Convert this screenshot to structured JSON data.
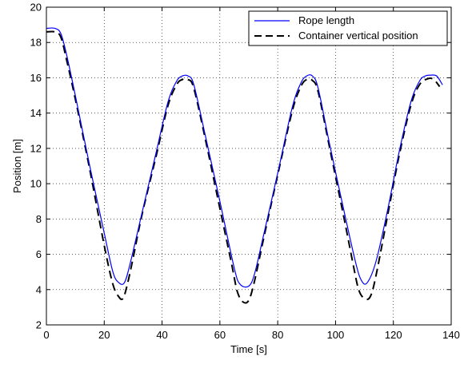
{
  "chart_data": {
    "type": "line",
    "title": "",
    "xlabel": "Time [s]",
    "ylabel": "Position [m]",
    "xlim": [
      0,
      140
    ],
    "ylim": [
      2,
      20
    ],
    "xticks": [
      0,
      20,
      40,
      60,
      80,
      100,
      120,
      140
    ],
    "yticks": [
      2,
      4,
      6,
      8,
      10,
      12,
      14,
      16,
      18,
      20
    ],
    "grid": true,
    "legend_position": "top-right",
    "series": [
      {
        "name": "Rope length",
        "style": "solid",
        "color": "#0000ff",
        "points": [
          [
            0,
            18.8
          ],
          [
            3,
            18.8
          ],
          [
            5,
            18.5
          ],
          [
            7,
            17.3
          ],
          [
            10,
            15.0
          ],
          [
            15,
            11.0
          ],
          [
            20,
            7.2
          ],
          [
            23,
            5.0
          ],
          [
            25,
            4.4
          ],
          [
            27,
            4.4
          ],
          [
            29,
            5.5
          ],
          [
            33,
            8.3
          ],
          [
            38,
            11.8
          ],
          [
            42,
            14.6
          ],
          [
            45,
            15.8
          ],
          [
            47,
            16.1
          ],
          [
            49,
            16.1
          ],
          [
            51,
            15.6
          ],
          [
            55,
            12.7
          ],
          [
            60,
            9.0
          ],
          [
            65,
            5.2
          ],
          [
            67,
            4.3
          ],
          [
            70,
            4.2
          ],
          [
            72,
            4.9
          ],
          [
            75,
            7.0
          ],
          [
            80,
            10.6
          ],
          [
            85,
            14.3
          ],
          [
            88,
            15.7
          ],
          [
            90,
            16.1
          ],
          [
            92,
            16.1
          ],
          [
            94,
            15.4
          ],
          [
            98,
            12.2
          ],
          [
            103,
            8.4
          ],
          [
            107,
            5.5
          ],
          [
            109,
            4.5
          ],
          [
            111,
            4.4
          ],
          [
            114,
            5.6
          ],
          [
            118,
            8.5
          ],
          [
            122,
            11.8
          ],
          [
            126,
            14.6
          ],
          [
            129,
            15.8
          ],
          [
            131,
            16.1
          ],
          [
            133,
            16.15
          ],
          [
            135,
            16.1
          ],
          [
            137,
            15.6
          ]
        ]
      },
      {
        "name": "Container vertical position",
        "style": "dashed",
        "color": "#000000",
        "points": [
          [
            0,
            18.6
          ],
          [
            3,
            18.6
          ],
          [
            5,
            18.3
          ],
          [
            7,
            17.0
          ],
          [
            10,
            14.8
          ],
          [
            15,
            10.8
          ],
          [
            20,
            6.5
          ],
          [
            23,
            4.3
          ],
          [
            25,
            3.6
          ],
          [
            26.5,
            3.5
          ],
          [
            28,
            4.3
          ],
          [
            30,
            5.8
          ],
          [
            33,
            8.2
          ],
          [
            38,
            11.6
          ],
          [
            42,
            14.4
          ],
          [
            45,
            15.6
          ],
          [
            47,
            15.9
          ],
          [
            49,
            15.9
          ],
          [
            51,
            15.4
          ],
          [
            55,
            12.5
          ],
          [
            60,
            8.6
          ],
          [
            64,
            5.5
          ],
          [
            66,
            3.9
          ],
          [
            68,
            3.3
          ],
          [
            70,
            3.4
          ],
          [
            72,
            4.5
          ],
          [
            75,
            6.8
          ],
          [
            80,
            10.5
          ],
          [
            85,
            14.1
          ],
          [
            88,
            15.5
          ],
          [
            90,
            15.9
          ],
          [
            92,
            15.85
          ],
          [
            94,
            15.2
          ],
          [
            98,
            12.0
          ],
          [
            103,
            8.0
          ],
          [
            106,
            5.5
          ],
          [
            108,
            4.0
          ],
          [
            110,
            3.5
          ],
          [
            112,
            3.6
          ],
          [
            114,
            4.8
          ],
          [
            118,
            8.2
          ],
          [
            122,
            11.6
          ],
          [
            126,
            14.4
          ],
          [
            129,
            15.6
          ],
          [
            132,
            15.95
          ],
          [
            134,
            15.9
          ],
          [
            136,
            15.5
          ]
        ]
      }
    ]
  }
}
